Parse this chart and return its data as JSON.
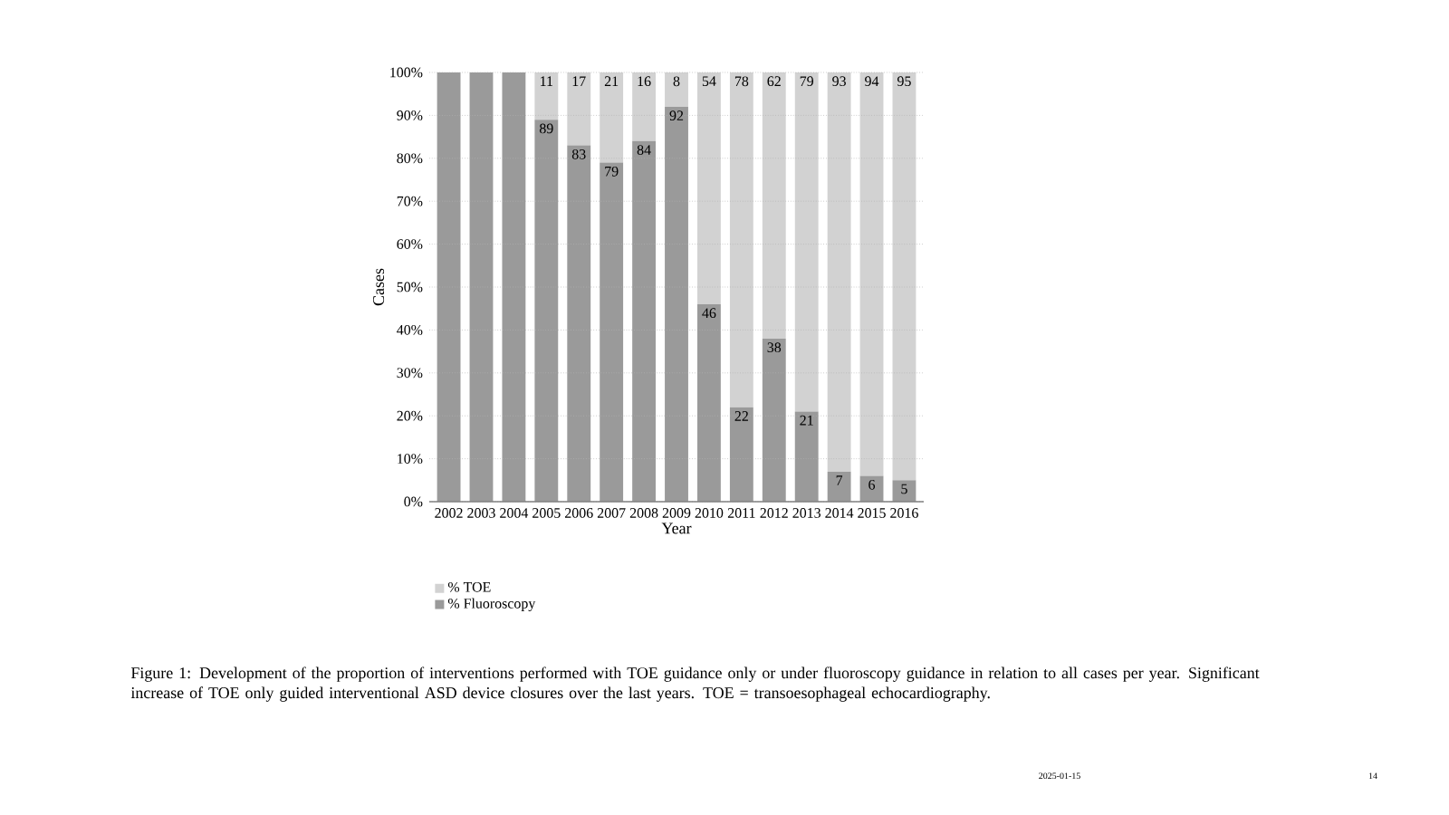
{
  "chart_data": {
    "type": "bar",
    "stacked": true,
    "xlabel": "Year",
    "ylabel": "Cases",
    "categories": [
      "2002",
      "2003",
      "2004",
      "2005",
      "2006",
      "2007",
      "2008",
      "2009",
      "2010",
      "2011",
      "2012",
      "2013",
      "2014",
      "2015",
      "2016"
    ],
    "series": [
      {
        "name": "% Fluoroscopy",
        "color": "#9a9a9a",
        "values": [
          100,
          100,
          100,
          89,
          83,
          79,
          84,
          92,
          46,
          22,
          38,
          21,
          7,
          6,
          5
        ],
        "value_labels": [
          null,
          null,
          null,
          "89",
          "83",
          "79",
          "84",
          "92",
          "46",
          "22",
          "38",
          "21",
          "7",
          "6",
          "5"
        ]
      },
      {
        "name": "% TOE",
        "color": "#d2d2d2",
        "values": [
          0,
          0,
          0,
          11,
          17,
          21,
          16,
          8,
          54,
          78,
          62,
          79,
          93,
          94,
          95
        ],
        "value_labels": [
          null,
          null,
          null,
          "11",
          "17",
          "21",
          "16",
          "8",
          "54",
          "78",
          "62",
          "79",
          "93",
          "94",
          "95"
        ]
      }
    ],
    "ylim": [
      0,
      100
    ],
    "yticks": [
      {
        "value": 0,
        "label": "0%"
      },
      {
        "value": 10,
        "label": "10%"
      },
      {
        "value": 20,
        "label": "20%"
      },
      {
        "value": 30,
        "label": "30%"
      },
      {
        "value": 40,
        "label": "40%"
      },
      {
        "value": 50,
        "label": "50%"
      },
      {
        "value": 60,
        "label": "60%"
      },
      {
        "value": 70,
        "label": "70%"
      },
      {
        "value": 80,
        "label": "80%"
      },
      {
        "value": 90,
        "label": "90%"
      },
      {
        "value": 100,
        "label": "100%"
      }
    ],
    "grid": "y",
    "legend": "bottom",
    "annotations": [
      "Figure 1: Development of the proportion of interventions performed with TOE guidance only or under fluoroscopy guidance in relation to all cases per year. Significant increase of TOE only guided interventional ASD device closures over the last years. TOE = transoesophageal echocardiography.",
      "2025-01-15",
      "14"
    ]
  }
}
